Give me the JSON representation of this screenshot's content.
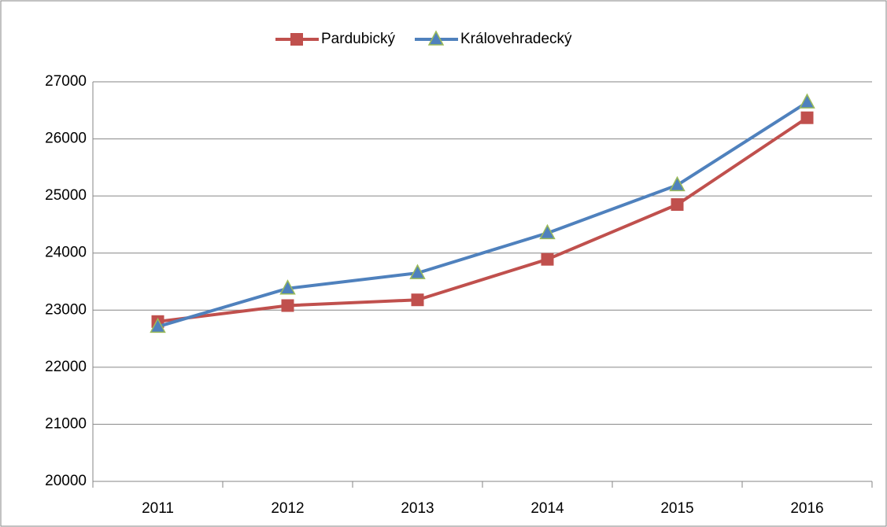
{
  "chart_data": {
    "type": "line",
    "categories": [
      "2011",
      "2012",
      "2013",
      "2014",
      "2015",
      "2016"
    ],
    "series": [
      {
        "name": "Pardubický",
        "color": "#c0504d",
        "marker": "square",
        "values": [
          22800,
          23080,
          23180,
          23890,
          24850,
          26370
        ]
      },
      {
        "name": "Královehradecký",
        "color": "#4f81bd",
        "marker": "triangle",
        "marker_edge": "#9bbb59",
        "values": [
          22710,
          23380,
          23650,
          24350,
          25190,
          26640
        ]
      }
    ],
    "ylim": [
      20000,
      27000
    ],
    "yticks": [
      20000,
      21000,
      22000,
      23000,
      24000,
      25000,
      26000,
      27000
    ],
    "grid": true,
    "legend": "top"
  }
}
